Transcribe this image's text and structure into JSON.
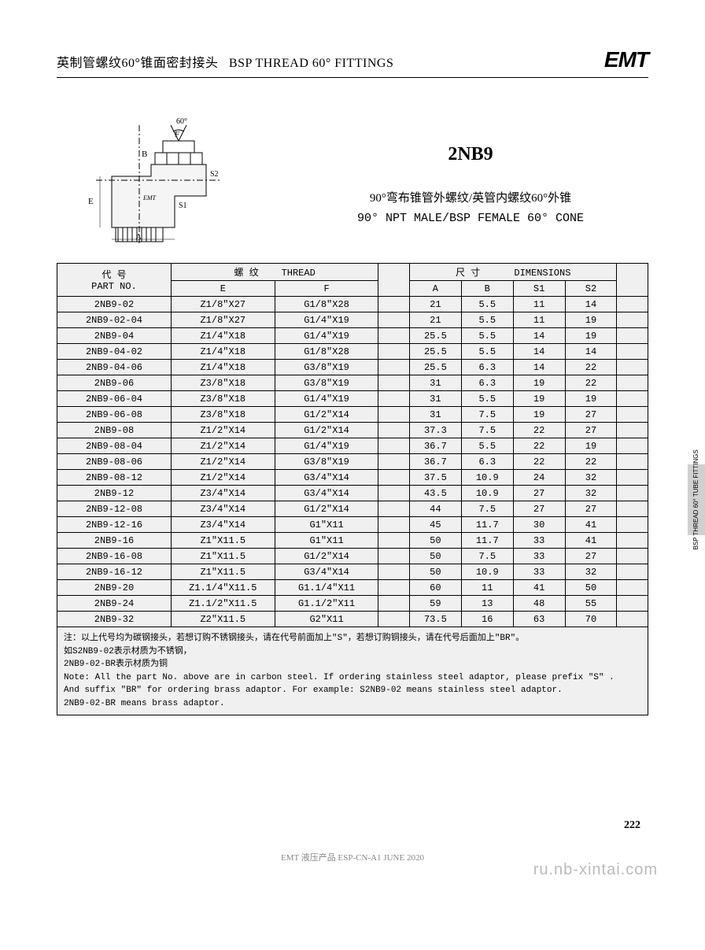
{
  "header": {
    "title_cn": "英制管螺纹60°锥面密封接头",
    "title_en": "BSP THREAD 60° FITTINGS",
    "logo": "EMT"
  },
  "product": {
    "code": "2NB9",
    "desc_cn": "90°弯布锥管外螺纹/英管内螺纹60°外锥",
    "desc_en": "90° NPT MALE/BSP FEMALE 60° CONE"
  },
  "diagram": {
    "labels": {
      "angle": "60°",
      "F": "F",
      "B": "B",
      "E": "E",
      "A": "A",
      "S1": "S1",
      "S2": "S2",
      "brand": "EMT"
    }
  },
  "table": {
    "headers": {
      "part_cn": "代  号",
      "part_en": "PART  NO.",
      "thread_cn": "螺  纹",
      "thread_en": "THREAD",
      "dim_cn": "尺  寸",
      "dim_en": "DIMENSIONS",
      "E": "E",
      "F": "F",
      "A": "A",
      "B": "B",
      "S1": "S1",
      "S2": "S2"
    },
    "rows": [
      {
        "pn": "2NB9-02",
        "e": "Z1/8\"X27",
        "f": "G1/8\"X28",
        "a": "21",
        "b": "5.5",
        "s1": "11",
        "s2": "14"
      },
      {
        "pn": "2NB9-02-04",
        "e": "Z1/8\"X27",
        "f": "G1/4\"X19",
        "a": "21",
        "b": "5.5",
        "s1": "11",
        "s2": "19"
      },
      {
        "pn": "2NB9-04",
        "e": "Z1/4\"X18",
        "f": "G1/4\"X19",
        "a": "25.5",
        "b": "5.5",
        "s1": "14",
        "s2": "19"
      },
      {
        "pn": "2NB9-04-02",
        "e": "Z1/4\"X18",
        "f": "G1/8\"X28",
        "a": "25.5",
        "b": "5.5",
        "s1": "14",
        "s2": "14"
      },
      {
        "pn": "2NB9-04-06",
        "e": "Z1/4\"X18",
        "f": "G3/8\"X19",
        "a": "25.5",
        "b": "6.3",
        "s1": "14",
        "s2": "22"
      },
      {
        "pn": "2NB9-06",
        "e": "Z3/8\"X18",
        "f": "G3/8\"X19",
        "a": "31",
        "b": "6.3",
        "s1": "19",
        "s2": "22"
      },
      {
        "pn": "2NB9-06-04",
        "e": "Z3/8\"X18",
        "f": "G1/4\"X19",
        "a": "31",
        "b": "5.5",
        "s1": "19",
        "s2": "19"
      },
      {
        "pn": "2NB9-06-08",
        "e": "Z3/8\"X18",
        "f": "G1/2\"X14",
        "a": "31",
        "b": "7.5",
        "s1": "19",
        "s2": "27"
      },
      {
        "pn": "2NB9-08",
        "e": "Z1/2\"X14",
        "f": "G1/2\"X14",
        "a": "37.3",
        "b": "7.5",
        "s1": "22",
        "s2": "27"
      },
      {
        "pn": "2NB9-08-04",
        "e": "Z1/2\"X14",
        "f": "G1/4\"X19",
        "a": "36.7",
        "b": "5.5",
        "s1": "22",
        "s2": "19"
      },
      {
        "pn": "2NB9-08-06",
        "e": "Z1/2\"X14",
        "f": "G3/8\"X19",
        "a": "36.7",
        "b": "6.3",
        "s1": "22",
        "s2": "22"
      },
      {
        "pn": "2NB9-08-12",
        "e": "Z1/2\"X14",
        "f": "G3/4\"X14",
        "a": "37.5",
        "b": "10.9",
        "s1": "24",
        "s2": "32"
      },
      {
        "pn": "2NB9-12",
        "e": "Z3/4\"X14",
        "f": "G3/4\"X14",
        "a": "43.5",
        "b": "10.9",
        "s1": "27",
        "s2": "32"
      },
      {
        "pn": "2NB9-12-08",
        "e": "Z3/4\"X14",
        "f": "G1/2\"X14",
        "a": "44",
        "b": "7.5",
        "s1": "27",
        "s2": "27"
      },
      {
        "pn": "2NB9-12-16",
        "e": "Z3/4\"X14",
        "f": "G1\"X11",
        "a": "45",
        "b": "11.7",
        "s1": "30",
        "s2": "41"
      },
      {
        "pn": "2NB9-16",
        "e": "Z1\"X11.5",
        "f": "G1\"X11",
        "a": "50",
        "b": "11.7",
        "s1": "33",
        "s2": "41"
      },
      {
        "pn": "2NB9-16-08",
        "e": "Z1\"X11.5",
        "f": "G1/2\"X14",
        "a": "50",
        "b": "7.5",
        "s1": "33",
        "s2": "27"
      },
      {
        "pn": "2NB9-16-12",
        "e": "Z1\"X11.5",
        "f": "G3/4\"X14",
        "a": "50",
        "b": "10.9",
        "s1": "33",
        "s2": "32"
      },
      {
        "pn": "2NB9-20",
        "e": "Z1.1/4\"X11.5",
        "f": "G1.1/4\"X11",
        "a": "60",
        "b": "11",
        "s1": "41",
        "s2": "50"
      },
      {
        "pn": "2NB9-24",
        "e": "Z1.1/2\"X11.5",
        "f": "G1.1/2\"X11",
        "a": "59",
        "b": "13",
        "s1": "48",
        "s2": "55"
      },
      {
        "pn": "2NB9-32",
        "e": "Z2\"X11.5",
        "f": "G2\"X11",
        "a": "73.5",
        "b": "16",
        "s1": "63",
        "s2": "70"
      }
    ]
  },
  "notes": {
    "cn1": "注：以上代号均为碳钢接头，若想订购不锈钢接头，请在代号前面加上\"S\"，若想订购铜接头，请在代号后面加上\"BR\"。",
    "cn2": "如S2NB9-02表示材质为不锈钢，",
    "cn3": "2NB9-02-BR表示材质为铜",
    "en1": "Note: All the part No. above are in carbon steel. If ordering stainless steel adaptor, please prefix \"S\" .",
    "en2": "And suffix  \"BR\"  for ordering brass adaptor. For example: S2NB9-02  means stainless steel adaptor.",
    "en3": "2NB9-02-BR means brass adaptor."
  },
  "page_number": "222",
  "footer": "EMT 液压产品 ESP-CN-A1 JUNE 2020",
  "watermark": "ru.nb-xintai.com",
  "side_tab": "BSP THREAD 60°\nTUBE FITTINGS"
}
